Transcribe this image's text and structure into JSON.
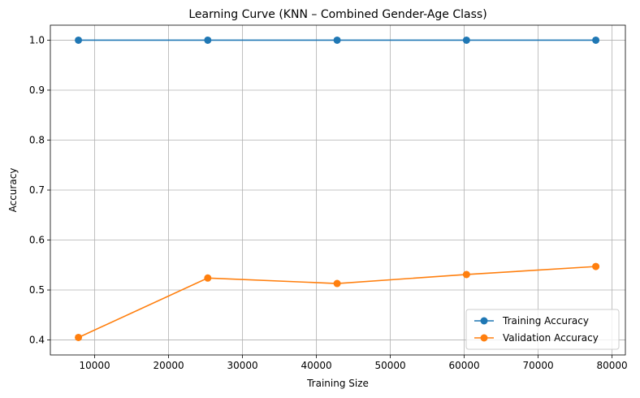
{
  "chart_data": {
    "type": "line",
    "title": "Learning Curve (KNN – Combined Gender-Age Class)",
    "xlabel": "Training Size",
    "ylabel": "Accuracy",
    "xlim": [
      4000,
      81800
    ],
    "ylim": [
      0.37,
      1.03
    ],
    "xticks": [
      10000,
      20000,
      30000,
      40000,
      50000,
      60000,
      70000,
      80000
    ],
    "yticks": [
      0.4,
      0.5,
      0.6,
      0.7,
      0.8,
      0.9,
      1.0
    ],
    "ytick_labels": [
      "0.4",
      "0.5",
      "0.6",
      "0.7",
      "0.8",
      "0.9",
      "1.0"
    ],
    "grid": true,
    "legend_position": "bottom-right",
    "x": [
      7800,
      25300,
      42800,
      60300,
      77800
    ],
    "series": [
      {
        "name": "Training Accuracy",
        "color": "#1f77b4",
        "values": [
          1.0,
          1.0,
          1.0,
          1.0,
          1.0
        ]
      },
      {
        "name": "Validation Accuracy",
        "color": "#ff7f0e",
        "values": [
          0.405,
          0.524,
          0.513,
          0.531,
          0.547
        ]
      }
    ]
  }
}
